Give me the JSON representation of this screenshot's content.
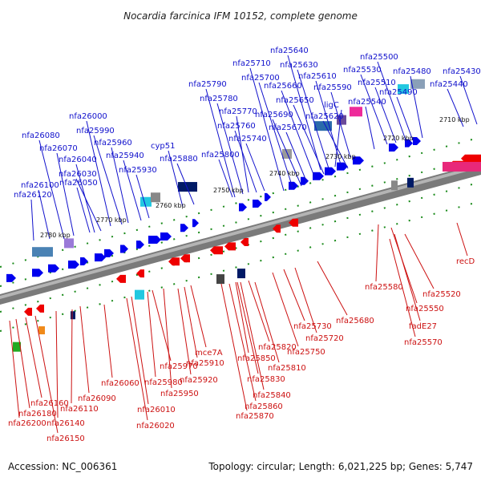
{
  "title": "Nocardia farcinica IFM 10152, complete genome",
  "footer": {
    "accession": "Accession: NC_006361",
    "summary": "Topology: circular; Length: 6,021,225 bp; Genes: 5,747"
  },
  "colors": {
    "forward_label": "#1111cc",
    "reverse_label": "#cc1111",
    "backbone": "#808080",
    "forward_gene": "#0000ee",
    "reverse_gene": "#ee0000",
    "tick": "#1a8a1a"
  },
  "kbp_markers": [
    "2710 kbp",
    "2720 kbp",
    "2730 kbp",
    "2740 kbp",
    "2750 kbp",
    "2760 kbp",
    "2770 kbp",
    "2780 kbp"
  ],
  "forward_labels": [
    "nfa25430",
    "nfa25440",
    "nfa25480",
    "nfa25490",
    "nfa25500",
    "nfa25510",
    "nfa25530",
    "nfa25540",
    "nfa25590",
    "nfa25610",
    "nfa25620",
    "ligC",
    "nfa25630",
    "nfa25640",
    "nfa25650",
    "nfa25660",
    "nfa25670",
    "nfa25690",
    "nfa25700",
    "nfa25710",
    "nfa25740",
    "nfa25760",
    "nfa25770",
    "nfa25780",
    "nfa25790",
    "nfa25800",
    "cyp51",
    "nfa25880",
    "nfa25930",
    "nfa25940",
    "nfa25960",
    "nfa25990",
    "nfa26000",
    "nfa26030",
    "nfa26040",
    "nfa26050",
    "nfa26070",
    "nfa26080",
    "nfa26100",
    "nfa26120"
  ],
  "reverse_labels": [
    "recD",
    "nfa25520",
    "nfa25550",
    "fadE27",
    "nfa25570",
    "nfa25580",
    "nfa25680",
    "nfa25720",
    "nfa25730",
    "nfa25750",
    "nfa25810",
    "nfa25820",
    "nfa25830",
    "nfa25840",
    "nfa25850",
    "nfa25860",
    "nfa25870",
    "mce7A",
    "nfa25910",
    "nfa25920",
    "nfa25950",
    "nfa25970",
    "nfa25980",
    "nfa26010",
    "nfa26020",
    "nfa26060",
    "nfa26090",
    "nfa26110",
    "nfa26140",
    "nfa26150",
    "nfa26160",
    "nfa26180",
    "nfa26200"
  ]
}
